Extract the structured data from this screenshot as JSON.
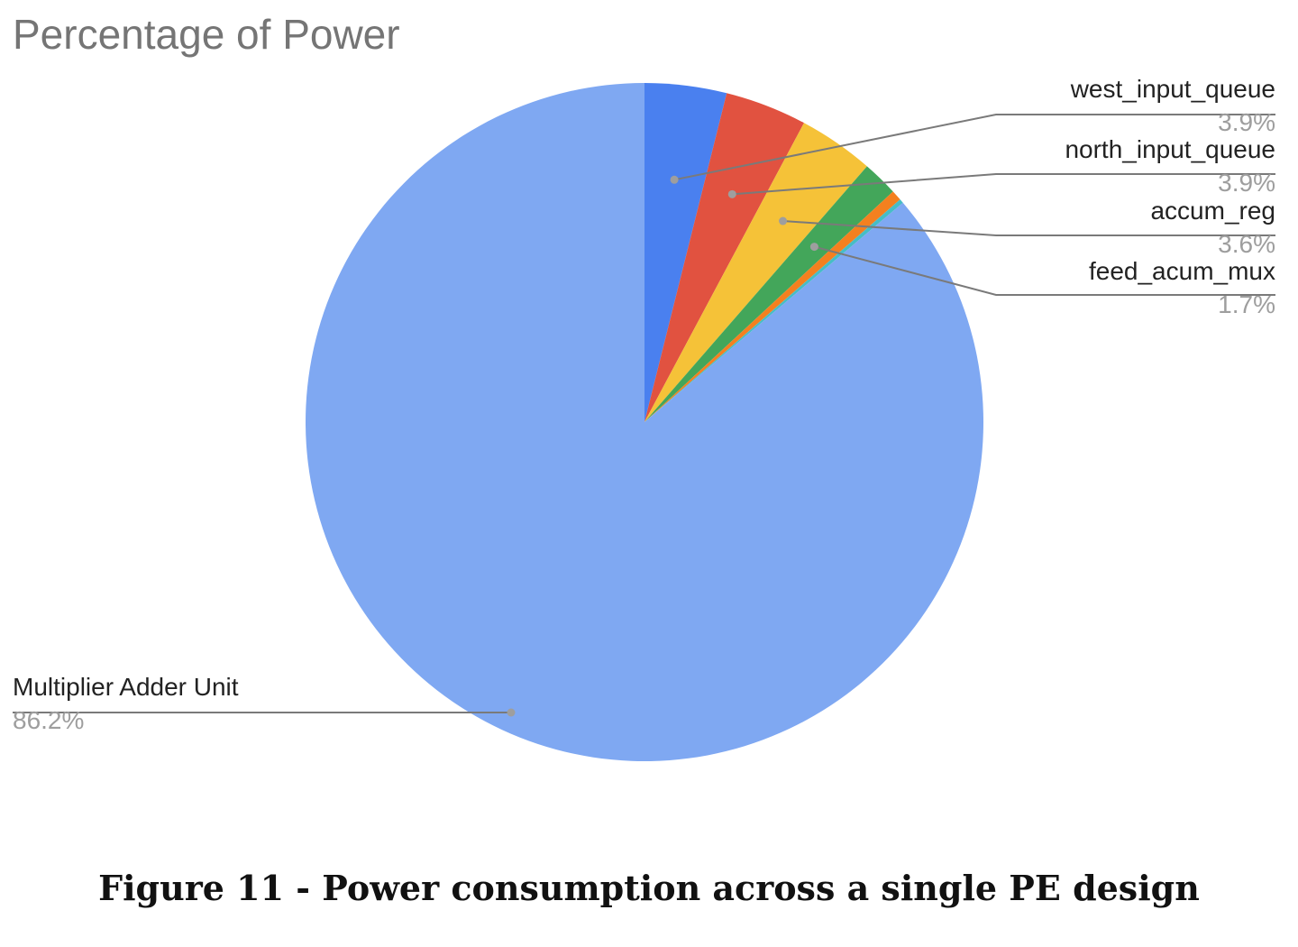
{
  "chart_data": {
    "type": "pie",
    "title": "Percentage of Power",
    "start_angle_deg": 0,
    "direction": "clockwise",
    "slices": [
      {
        "label": "west_input_queue",
        "value": 3.9,
        "pct_label": "3.9%",
        "color": "#4a80ef"
      },
      {
        "label": "north_input_queue",
        "value": 3.9,
        "pct_label": "3.9%",
        "color": "#e15240"
      },
      {
        "label": "accum_reg",
        "value": 3.6,
        "pct_label": "3.6%",
        "color": "#f5c238"
      },
      {
        "label": "feed_acum_mux",
        "value": 1.7,
        "pct_label": "1.7%",
        "color": "#43a65a"
      },
      {
        "label": "",
        "value": 0.5,
        "pct_label": "",
        "color": "#f4801f"
      },
      {
        "label": "",
        "value": 0.2,
        "pct_label": "",
        "color": "#46bdc6"
      },
      {
        "label": "Multiplier Adder Unit",
        "value": 86.2,
        "pct_label": "86.2%",
        "color": "#7fa8f2"
      }
    ]
  },
  "caption": "Figure 11 - Power consumption across a single PE design"
}
